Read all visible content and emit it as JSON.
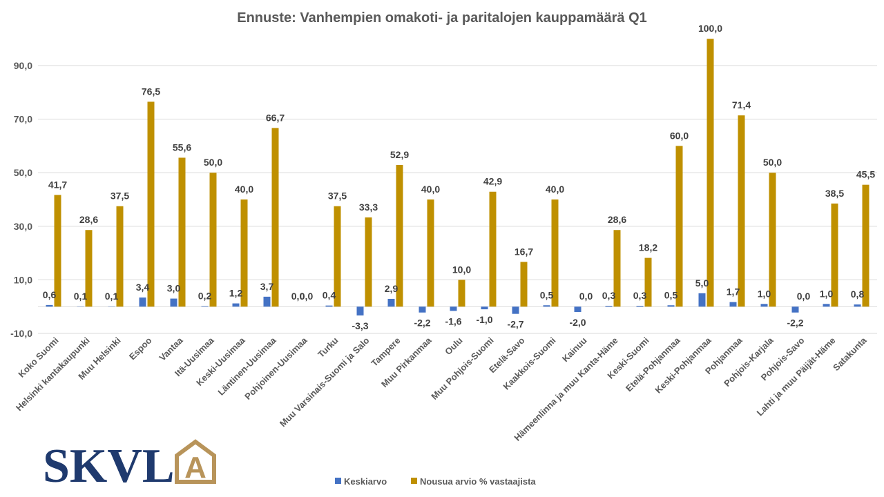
{
  "chart_data": {
    "type": "bar",
    "title": "Ennuste: Vanhempien omakoti- ja paritalojen kauppamäärä Q1",
    "xlabel": "",
    "ylabel": "",
    "ylim": [
      -10,
      100
    ],
    "yticks": [
      -10,
      10,
      30,
      50,
      70,
      90
    ],
    "ytick_labels": [
      "-10,0",
      "10,0",
      "30,0",
      "50,0",
      "70,0",
      "90,0"
    ],
    "grid": true,
    "legend": "bottom-center",
    "categories": [
      "Koko Suomi",
      "Helsinki kantakaupunki",
      "Muu Helsinki",
      "Espoo",
      "Vantaa",
      "Itä-Uusimaa",
      "Keski-Uusimaa",
      "Läntinen-Uusimaa",
      "Pohjoinen-Uusimaa",
      "Turku",
      "Muu Varsinais-Suomi ja Salo",
      "Tampere",
      "Muu Pirkanmaa",
      "Oulu",
      "Muu Pohjois-Suomi",
      "Etelä-Savo",
      "Kaakkois-Suomi",
      "Kainuu",
      "Hämeenlinna ja muu Kanta-Häme",
      "Keski-Suomi",
      "Etelä-Pohjanmaa",
      "Keski-Pohjanmaa",
      "Pohjanmaa",
      "Pohjois-Karjala",
      "Pohjois-Savo",
      "Lahti ja muu Päijät-Häme",
      "Satakunta"
    ],
    "series": [
      {
        "name": "Keskiarvo",
        "color": "#4472c4",
        "values": [
          0.6,
          0.1,
          0.1,
          3.4,
          3.0,
          0.2,
          1.2,
          3.7,
          0.0,
          0.4,
          -3.3,
          2.9,
          -2.2,
          -1.6,
          -1.0,
          -2.7,
          0.5,
          -2.0,
          0.3,
          0.3,
          0.5,
          5.0,
          1.7,
          1.0,
          -2.2,
          1.0,
          0.8
        ],
        "labels": [
          "0,6",
          "0,1",
          "0,1",
          "3,4",
          "3,0",
          "0,2",
          "1,2",
          "3,7",
          "0,0",
          "0,4",
          "-3,3",
          "2,9",
          "-2,2",
          "-1,6",
          "-1,0",
          "-2,7",
          "0,5",
          "-2,0",
          "0,3",
          "0,3",
          "0,5",
          "5,0",
          "1,7",
          "1,0",
          "-2,2",
          "1,0",
          "0,8"
        ]
      },
      {
        "name": "Nousua arvio % vastaajista",
        "color": "#bf9000",
        "values": [
          41.7,
          28.6,
          37.5,
          76.5,
          55.6,
          50.0,
          40.0,
          66.7,
          0.0,
          37.5,
          33.3,
          52.9,
          40.0,
          10.0,
          42.9,
          16.7,
          40.0,
          0.0,
          28.6,
          18.2,
          60.0,
          100.0,
          71.4,
          50.0,
          0.0,
          38.5,
          45.5
        ],
        "labels": [
          "41,7",
          "28,6",
          "37,5",
          "76,5",
          "55,6",
          "50,0",
          "40,0",
          "66,7",
          "0,0",
          "37,5",
          "33,3",
          "52,9",
          "40,0",
          "10,0",
          "42,9",
          "16,7",
          "40,0",
          "0,0",
          "28,6",
          "18,2",
          "60,0",
          "100,0",
          "71,4",
          "50,0",
          "0,0",
          "38,5",
          "45,5"
        ]
      }
    ]
  },
  "logo": {
    "text": "SKVL",
    "emblem_letter": "A",
    "text_color": "#1f3a6e",
    "emblem_color": "#b8945a"
  }
}
